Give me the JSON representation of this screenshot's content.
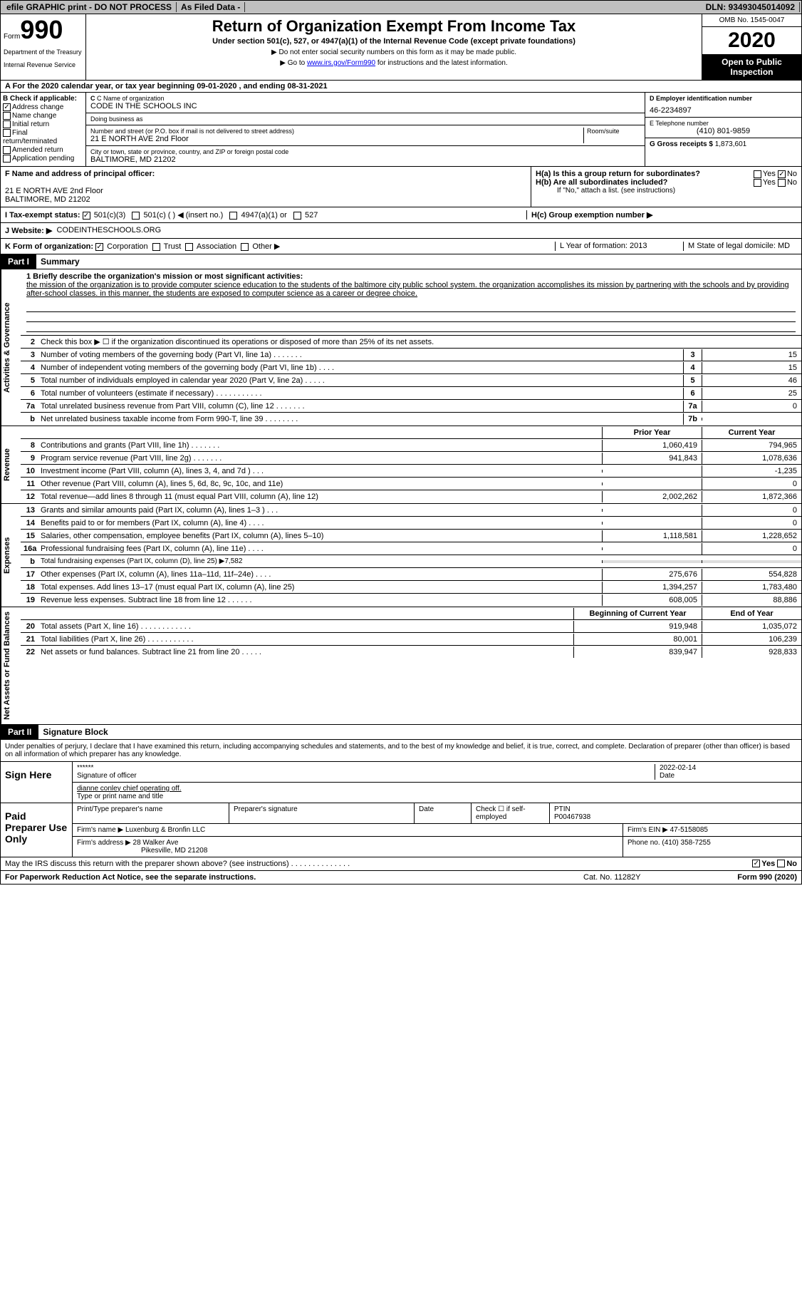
{
  "topbar": {
    "efile": "efile GRAPHIC print - DO NOT PROCESS",
    "asfiled": "As Filed Data -",
    "dln": "DLN: 93493045014092"
  },
  "header": {
    "form": "Form",
    "number": "990",
    "dept": "Department of the Treasury",
    "irs": "Internal Revenue Service",
    "title": "Return of Organization Exempt From Income Tax",
    "sub": "Under section 501(c), 527, or 4947(a)(1) of the Internal Revenue Code (except private foundations)",
    "note1": "▶ Do not enter social security numbers on this form as it may be made public.",
    "note2_prefix": "▶ Go to ",
    "note2_link": "www.irs.gov/Form990",
    "note2_suffix": " for instructions and the latest information.",
    "omb": "OMB No. 1545-0047",
    "year": "2020",
    "open": "Open to Public Inspection"
  },
  "row_a": "A   For the 2020 calendar year, or tax year beginning 09-01-2020   , and ending 08-31-2021",
  "box_b": {
    "label": "B Check if applicable:",
    "items": [
      "Address change",
      "Name change",
      "Initial return",
      "Final return/terminated",
      "Amended return",
      "Application pending"
    ],
    "checked": [
      true,
      false,
      false,
      false,
      false,
      false
    ]
  },
  "box_c": {
    "name_lbl": "C Name of organization",
    "name": "CODE IN THE SCHOOLS INC",
    "dba_lbl": "Doing business as",
    "dba": "",
    "street_lbl": "Number and street (or P.O. box if mail is not delivered to street address)",
    "street": "21 E NORTH AVE 2nd Floor",
    "room_lbl": "Room/suite",
    "city_lbl": "City or town, state or province, country, and ZIP or foreign postal code",
    "city": "BALTIMORE, MD  21202"
  },
  "box_d": {
    "lbl": "D Employer identification number",
    "val": "46-2234897"
  },
  "box_e": {
    "lbl": "E Telephone number",
    "val": "(410) 801-9859"
  },
  "box_g": {
    "lbl": "G Gross receipts $",
    "val": "1,873,601"
  },
  "box_f": {
    "lbl": "F  Name and address of principal officer:",
    "addr1": "21 E NORTH AVE 2nd Floor",
    "addr2": "BALTIMORE, MD  21202"
  },
  "box_h": {
    "a": "H(a)  Is this a group return for subordinates?",
    "b": "H(b)  Are all subordinates included?",
    "note": "If \"No,\" attach a list. (see instructions)",
    "c": "H(c)  Group exemption number ▶"
  },
  "tax_status": {
    "lbl": "I   Tax-exempt status:",
    "o1": "501(c)(3)",
    "o2": "501(c) (  ) ◀ (insert no.)",
    "o3": "4947(a)(1) or",
    "o4": "527"
  },
  "website": {
    "lbl": "J   Website: ▶",
    "val": "CODEINTHESCHOOLS.ORG"
  },
  "k_row": {
    "lbl": "K Form of organization:",
    "o1": "Corporation",
    "o2": "Trust",
    "o3": "Association",
    "o4": "Other ▶",
    "l": "L Year of formation: 2013",
    "m": "M State of legal domicile: MD"
  },
  "part1": {
    "hdr": "Part I",
    "title": "Summary"
  },
  "mission": {
    "lbl": "1  Briefly describe the organization's mission or most significant activities:",
    "txt": "the mission of the organization is to provide computer science education to the students of the baltimore city public school system. the organization accomplishes its mission by partnering with the schools and by providing after-school classes. in this manner, the students are exposed to computer science as a career or degree choice."
  },
  "line2": "Check this box ▶ ☐ if the organization discontinued its operations or disposed of more than 25% of its net assets.",
  "gov_lines": [
    {
      "n": "3",
      "d": "Number of voting members of the governing body (Part VI, line 1a)  .   .   .   .   .   .   .",
      "b": "3",
      "v": "15"
    },
    {
      "n": "4",
      "d": "Number of independent voting members of the governing body (Part VI, line 1b)  .   .   .   .",
      "b": "4",
      "v": "15"
    },
    {
      "n": "5",
      "d": "Total number of individuals employed in calendar year 2020 (Part V, line 2a)  .   .   .   .   .",
      "b": "5",
      "v": "46"
    },
    {
      "n": "6",
      "d": "Total number of volunteers (estimate if necessary)  .   .   .   .   .   .   .   .   .   .   .",
      "b": "6",
      "v": "25"
    },
    {
      "n": "7a",
      "d": "Total unrelated business revenue from Part VIII, column (C), line 12  .   .   .   .   .   .   .",
      "b": "7a",
      "v": "0"
    },
    {
      "n": "b",
      "d": "Net unrelated business taxable income from Form 990-T, line 39  .   .   .   .   .   .   .   .",
      "b": "7b",
      "v": ""
    }
  ],
  "col_hdr": {
    "prior": "Prior Year",
    "curr": "Current Year"
  },
  "rev_lines": [
    {
      "n": "8",
      "d": "Contributions and grants (Part VIII, line 1h)  .   .   .   .   .   .   .",
      "p": "1,060,419",
      "c": "794,965"
    },
    {
      "n": "9",
      "d": "Program service revenue (Part VIII, line 2g)  .   .   .   .   .   .   .",
      "p": "941,843",
      "c": "1,078,636"
    },
    {
      "n": "10",
      "d": "Investment income (Part VIII, column (A), lines 3, 4, and 7d )  .   .   .",
      "p": "",
      "c": "-1,235"
    },
    {
      "n": "11",
      "d": "Other revenue (Part VIII, column (A), lines 5, 6d, 8c, 9c, 10c, and 11e)",
      "p": "",
      "c": "0"
    },
    {
      "n": "12",
      "d": "Total revenue—add lines 8 through 11 (must equal Part VIII, column (A), line 12)",
      "p": "2,002,262",
      "c": "1,872,366"
    }
  ],
  "exp_lines": [
    {
      "n": "13",
      "d": "Grants and similar amounts paid (Part IX, column (A), lines 1–3 )  .   .   .",
      "p": "",
      "c": "0"
    },
    {
      "n": "14",
      "d": "Benefits paid to or for members (Part IX, column (A), line 4)  .   .   .   .",
      "p": "",
      "c": "0"
    },
    {
      "n": "15",
      "d": "Salaries, other compensation, employee benefits (Part IX, column (A), lines 5–10)",
      "p": "1,118,581",
      "c": "1,228,652"
    },
    {
      "n": "16a",
      "d": "Professional fundraising fees (Part IX, column (A), line 11e)  .   .   .   .",
      "p": "",
      "c": "0"
    },
    {
      "n": "b",
      "d": "Total fundraising expenses (Part IX, column (D), line 25) ▶7,582",
      "p": null,
      "c": null
    },
    {
      "n": "17",
      "d": "Other expenses (Part IX, column (A), lines 11a–11d, 11f–24e)  .   .   .   .",
      "p": "275,676",
      "c": "554,828"
    },
    {
      "n": "18",
      "d": "Total expenses. Add lines 13–17 (must equal Part IX, column (A), line 25)",
      "p": "1,394,257",
      "c": "1,783,480"
    },
    {
      "n": "19",
      "d": "Revenue less expenses. Subtract line 18 from line 12  .   .   .   .   .   .",
      "p": "608,005",
      "c": "88,886"
    }
  ],
  "net_hdr": {
    "prior": "Beginning of Current Year",
    "curr": "End of Year"
  },
  "net_lines": [
    {
      "n": "20",
      "d": "Total assets (Part X, line 16)  .   .   .   .   .   .   .   .   .   .   .   .",
      "p": "919,948",
      "c": "1,035,072"
    },
    {
      "n": "21",
      "d": "Total liabilities (Part X, line 26)  .   .   .   .   .   .   .   .   .   .   .",
      "p": "80,001",
      "c": "106,239"
    },
    {
      "n": "22",
      "d": "Net assets or fund balances. Subtract line 21 from line 20  .   .   .   .   .",
      "p": "839,947",
      "c": "928,833"
    }
  ],
  "part2": {
    "hdr": "Part II",
    "title": "Signature Block"
  },
  "sig": {
    "intro": "Under penalties of perjury, I declare that I have examined this return, including accompanying schedules and statements, and to the best of my knowledge and belief, it is true, correct, and complete. Declaration of preparer (other than officer) is based on all information of which preparer has any knowledge.",
    "here": "Sign Here",
    "stars": "******",
    "sig_lbl": "Signature of officer",
    "date": "2022-02-14",
    "date_lbl": "Date",
    "name": "dianne conley  chief operating off.",
    "name_lbl": "Type or print name and title"
  },
  "prep": {
    "lbl": "Paid Preparer Use Only",
    "h1": "Print/Type preparer's name",
    "h2": "Preparer's signature",
    "h3": "Date",
    "h4": "Check ☐ if self-employed",
    "h5": "PTIN",
    "ptin": "P00467938",
    "firm_lbl": "Firm's name    ▶",
    "firm": "Luxenburg & Bronfin LLC",
    "ein_lbl": "Firm's EIN ▶",
    "ein": "47-5158085",
    "addr_lbl": "Firm's address ▶",
    "addr1": "28 Walker Ave",
    "addr2": "Pikesville, MD  21208",
    "phone_lbl": "Phone no.",
    "phone": "(410) 358-7255"
  },
  "may_irs": "May the IRS discuss this return with the preparer shown above? (see instructions)  .   .   .   .   .   .   .   .   .   .   .   .   .   .",
  "footer": {
    "left": "For Paperwork Reduction Act Notice, see the separate instructions.",
    "mid": "Cat. No. 11282Y",
    "right": "Form 990 (2020)"
  },
  "vtabs": {
    "gov": "Activities & Governance",
    "rev": "Revenue",
    "exp": "Expenses",
    "net": "Net Assets or Fund Balances"
  }
}
